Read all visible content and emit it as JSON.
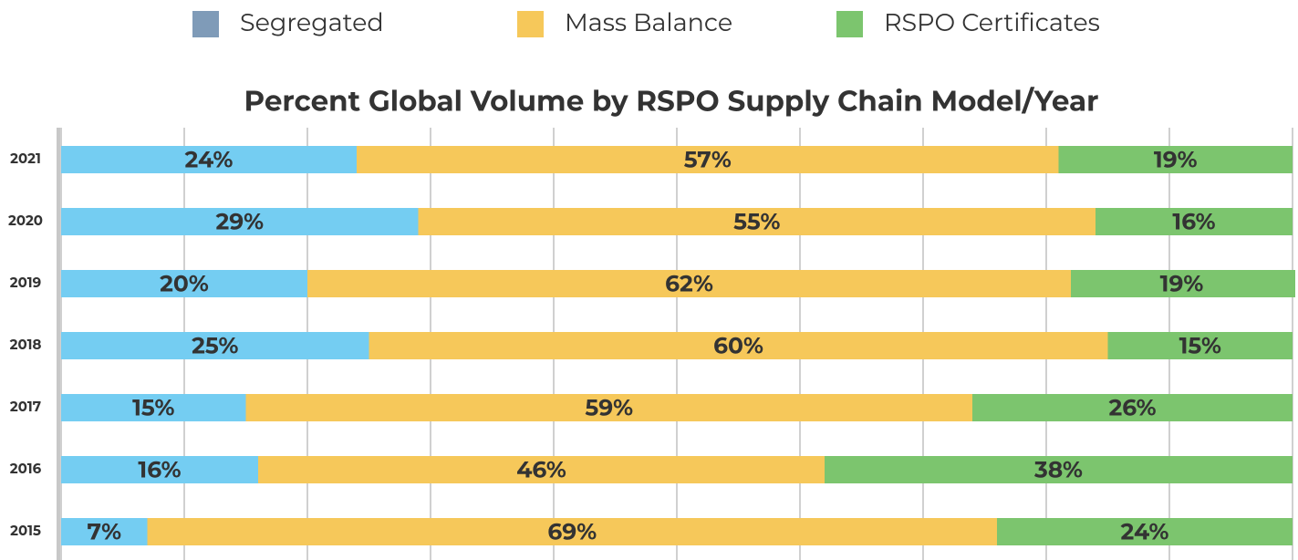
{
  "chart_data": {
    "type": "stacked-bar-horizontal",
    "title": "Percent Global Volume by RSPO Supply Chain Model/Year",
    "categories": [
      "2021",
      "2020",
      "2019",
      "2018",
      "2017",
      "2016",
      "2015"
    ],
    "series": [
      {
        "name": "Segregated",
        "color": "#74cdf2",
        "legend_color": "#7f9bb8",
        "values": [
          24,
          29,
          20,
          25,
          15,
          16,
          7
        ],
        "value_labels": [
          "24%",
          "29%",
          "20%",
          "25%",
          "15%",
          "16%",
          "7%"
        ]
      },
      {
        "name": "Mass Balance",
        "color": "#f6c85a",
        "legend_color": "#f6c85a",
        "values": [
          57,
          55,
          62,
          60,
          59,
          46,
          69
        ],
        "value_labels": [
          "57%",
          "55%",
          "62%",
          "60%",
          "59%",
          "46%",
          "69%"
        ]
      },
      {
        "name": "RSPO Certificates",
        "color": "#7cc56e",
        "legend_color": "#7cc56e",
        "values": [
          19,
          16,
          19,
          15,
          26,
          38,
          24
        ],
        "value_labels": [
          "19%",
          "16%",
          "19%",
          "15%",
          "26%",
          "38%",
          "24%"
        ]
      }
    ],
    "xlim": [
      0,
      100
    ],
    "xticks": [
      0,
      10,
      20,
      30,
      40,
      50,
      60,
      70,
      80,
      90,
      100
    ],
    "grid": true,
    "legend": "top"
  }
}
